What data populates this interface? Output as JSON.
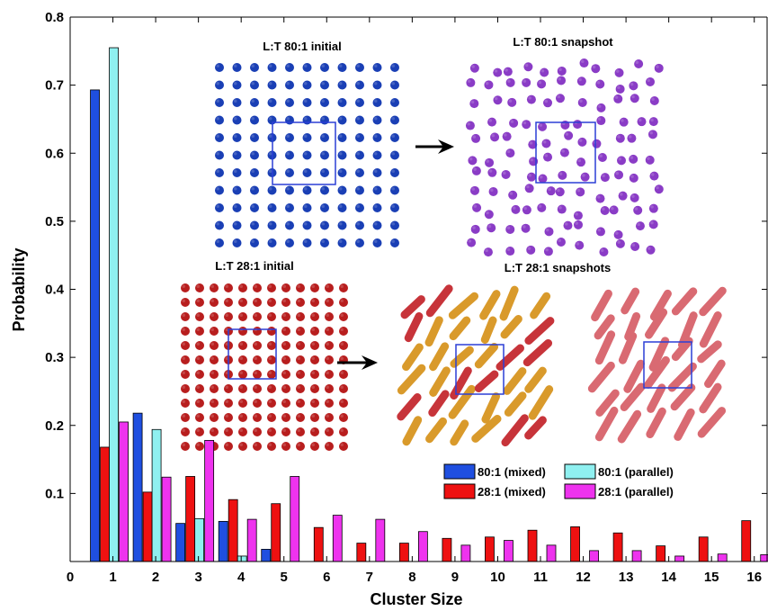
{
  "chart_data": {
    "type": "bar",
    "xlabel": "Cluster Size",
    "ylabel": "Probability",
    "xlim": [
      0,
      16.3
    ],
    "ylim": [
      0,
      0.8
    ],
    "xticks": [
      "0",
      "1",
      "2",
      "3",
      "4",
      "5",
      "6",
      "7",
      "8",
      "9",
      "10",
      "11",
      "12",
      "13",
      "14",
      "15",
      "16"
    ],
    "yticks": [
      "0.1",
      "0.2",
      "0.3",
      "0.4",
      "0.5",
      "0.6",
      "0.7",
      "0.8"
    ],
    "categories": [
      1,
      2,
      3,
      4,
      5,
      6,
      7,
      8,
      9,
      10,
      11,
      12,
      13,
      14,
      15,
      16
    ],
    "series": [
      {
        "name": "80:1 (mixed)",
        "color": "#1f4fe0",
        "values": [
          0.693,
          0.218,
          0.056,
          0.059,
          0.018,
          0,
          0,
          0,
          0,
          0,
          0,
          0,
          0,
          0,
          0,
          0
        ]
      },
      {
        "name": "28:1 (mixed)",
        "color": "#ee1111",
        "values": [
          0.168,
          0.102,
          0.125,
          0.091,
          0.085,
          0.05,
          0.027,
          0.027,
          0.034,
          0.036,
          0.046,
          0.051,
          0.042,
          0.023,
          0.036,
          0.06
        ]
      },
      {
        "name": "80:1 (parallel)",
        "color": "#8ff0f0",
        "values": [
          0.755,
          0.194,
          0.063,
          0.008,
          0,
          0,
          0,
          0,
          0,
          0,
          0,
          0,
          0,
          0,
          0,
          0
        ]
      },
      {
        "name": "28:1 (parallel)",
        "color": "#ee33ee",
        "values": [
          0.205,
          0.124,
          0.178,
          0.062,
          0.125,
          0.068,
          0.062,
          0.044,
          0.024,
          0.031,
          0.024,
          0.016,
          0.016,
          0.008,
          0.011,
          0.01
        ]
      }
    ],
    "grid": false,
    "legend_position": "lower-right inside plot",
    "insets": [
      {
        "title": "L:T 80:1 initial",
        "color": "#1a3fb5"
      },
      {
        "title": "L:T 80:1 snapshot",
        "color": "#8a3cc6"
      },
      {
        "title": "L:T 28:1 initial",
        "color": "#b81e1e"
      },
      {
        "title": "L:T 28:1 snapshots",
        "colors": [
          "#c7343a",
          "#d99a2b",
          "#d96a72"
        ]
      }
    ]
  }
}
